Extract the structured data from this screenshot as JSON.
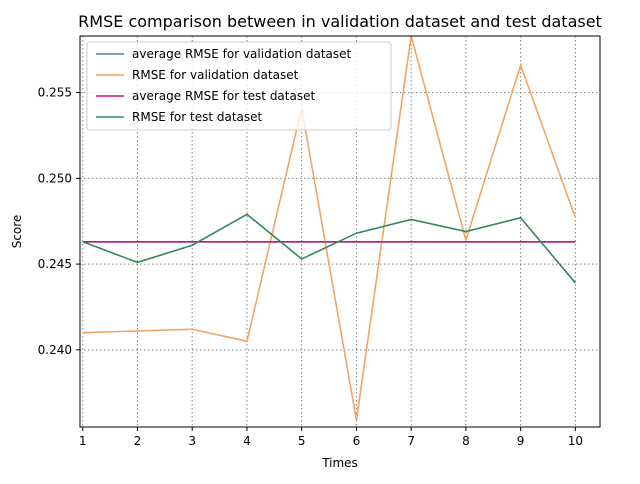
{
  "chart_data": {
    "type": "line",
    "title": "RMSE comparison between in validation dataset and test dataset",
    "xlabel": "Times",
    "ylabel": "Score",
    "x": [
      1,
      2,
      3,
      4,
      5,
      6,
      7,
      8,
      9,
      10
    ],
    "xlim": [
      0.95,
      10.45
    ],
    "ylim": [
      0.2355,
      0.2583
    ],
    "xticks": [
      "1",
      "2",
      "3",
      "4",
      "5",
      "6",
      "7",
      "8",
      "9",
      "10"
    ],
    "yticks": [
      {
        "value": 0.24,
        "label": "0.240"
      },
      {
        "value": 0.245,
        "label": "0.245"
      },
      {
        "value": 0.25,
        "label": "0.250"
      },
      {
        "value": 0.255,
        "label": "0.255"
      }
    ],
    "grid": true,
    "legend_position": "upper-left",
    "series": [
      {
        "name": "average RMSE for validation dataset",
        "color": "#4682b4",
        "values": [
          0.2463,
          0.2463,
          0.2463,
          0.2463,
          0.2463,
          0.2463,
          0.2463,
          0.2463,
          0.2463,
          0.2463
        ]
      },
      {
        "name": "RMSE for validation dataset",
        "color": "#f4a460",
        "values": [
          0.241,
          0.2411,
          0.2412,
          0.2405,
          0.2541,
          0.2359,
          0.2583,
          0.2464,
          0.2566,
          0.2477
        ]
      },
      {
        "name": "average RMSE for test dataset",
        "color": "#c71585",
        "values": [
          0.2463,
          0.2463,
          0.2463,
          0.2463,
          0.2463,
          0.2463,
          0.2463,
          0.2463,
          0.2463,
          0.2463
        ]
      },
      {
        "name": "RMSE for test dataset",
        "color": "#2e8b57",
        "values": [
          0.2463,
          0.2451,
          0.2461,
          0.2479,
          0.2453,
          0.2468,
          0.2476,
          0.2469,
          0.2477,
          0.2439
        ]
      }
    ]
  }
}
